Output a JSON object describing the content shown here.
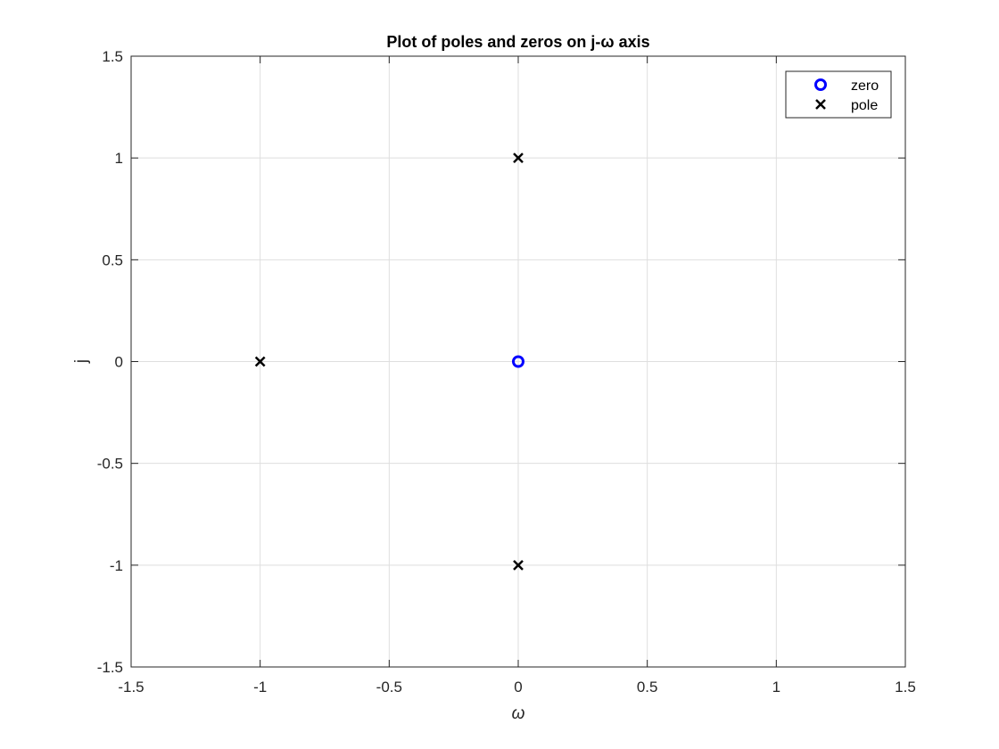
{
  "chart_data": {
    "type": "scatter",
    "title": "Plot of poles and zeros on j-ω axis",
    "xlabel": "ω",
    "ylabel": "j",
    "xlim": [
      -1.5,
      1.5
    ],
    "ylim": [
      -1.5,
      1.5
    ],
    "xticks": [
      -1.5,
      -1,
      -0.5,
      0,
      0.5,
      1,
      1.5
    ],
    "yticks": [
      -1.5,
      -1,
      -0.5,
      0,
      0.5,
      1,
      1.5
    ],
    "xtick_labels": [
      "-1.5",
      "-1",
      "-0.5",
      "0",
      "0.5",
      "1",
      "1.5"
    ],
    "ytick_labels": [
      "-1.5",
      "-1",
      "-0.5",
      "0",
      "0.5",
      "1",
      "1.5"
    ],
    "grid": true,
    "legend_position": "top-right",
    "series": [
      {
        "name": "zero",
        "marker": "circle",
        "color": "#0000ff",
        "points": [
          {
            "x": 0,
            "y": 0
          }
        ]
      },
      {
        "name": "pole",
        "marker": "x",
        "color": "#000000",
        "points": [
          {
            "x": 0,
            "y": 1
          },
          {
            "x": -1,
            "y": 0
          },
          {
            "x": 0,
            "y": -1
          }
        ]
      }
    ]
  }
}
